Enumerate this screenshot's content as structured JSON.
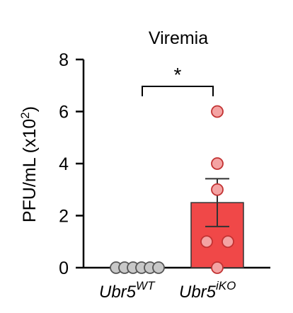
{
  "chart_data": {
    "type": "bar",
    "title": "Viremia",
    "ylabel_main": "PFU/mL (x10",
    "ylabel_exp": "2",
    "ylabel_close": ")",
    "ylim": [
      0,
      8
    ],
    "yticks": [
      "0",
      "2",
      "4",
      "6",
      "8"
    ],
    "categories": [
      {
        "base": "Ubr5",
        "sup": "WT"
      },
      {
        "base": "Ubr5",
        "sup": "iKO"
      }
    ],
    "bars": [
      {
        "mean": 0,
        "sem": 0,
        "points": [
          0,
          0,
          0,
          0,
          0,
          0
        ],
        "fill": "#ffffff",
        "point_fill": "#c8c8c8",
        "point_edge": "#555555"
      },
      {
        "mean": 2.5,
        "sem": 0.92,
        "points": [
          6.0,
          4.0,
          3.0,
          1.0,
          1.0,
          0
        ],
        "fill": "#f04848",
        "point_fill": "#f4a3a3",
        "point_edge": "#c23232"
      }
    ],
    "significance": "*",
    "grid": false
  }
}
